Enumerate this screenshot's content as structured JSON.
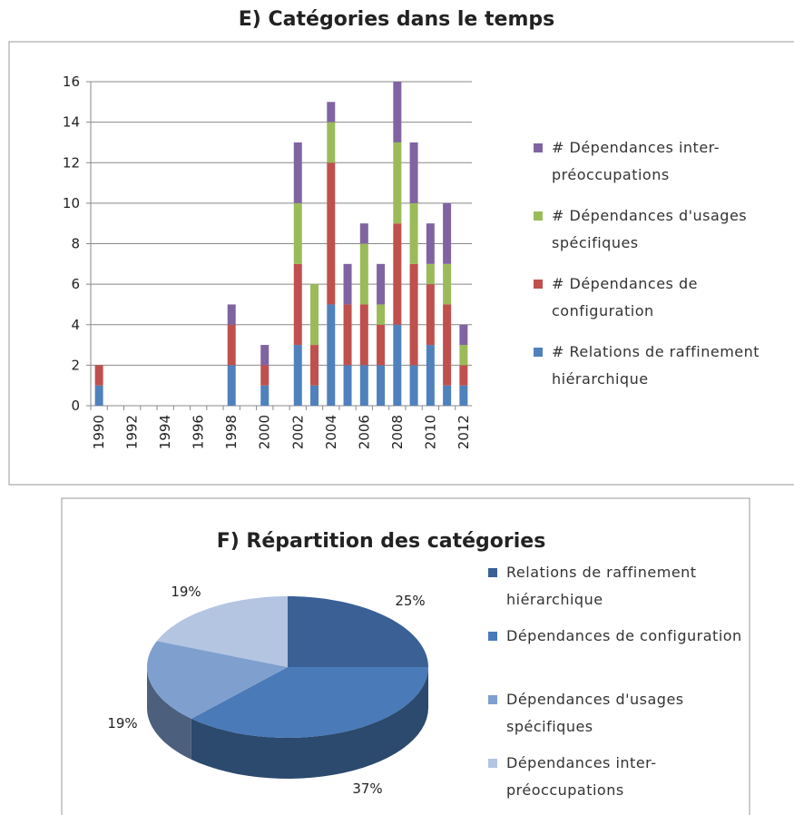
{
  "chart_data": [
    {
      "type": "bar",
      "stacked": true,
      "title": "E) Catégories dans le temps",
      "categories": [
        "1990",
        null,
        "1992",
        null,
        "1994",
        null,
        "1996",
        null,
        "1998",
        null,
        "2000",
        null,
        "2002",
        null,
        "2004",
        null,
        "2006",
        null,
        "2008",
        null,
        "2010",
        null,
        "2012"
      ],
      "series": [
        {
          "name": "# Relations de raffinement hiérarchique",
          "color": "#4f81bd",
          "values": [
            1,
            0,
            0,
            0,
            0,
            0,
            0,
            0,
            2,
            0,
            1,
            0,
            3,
            1,
            5,
            2,
            2,
            2,
            4,
            2,
            3,
            1,
            1
          ]
        },
        {
          "name": "# Dépendances de configuration",
          "color": "#c0504d",
          "values": [
            1,
            0,
            0,
            0,
            0,
            0,
            0,
            0,
            2,
            0,
            1,
            0,
            4,
            2,
            7,
            3,
            3,
            2,
            5,
            5,
            3,
            4,
            1
          ]
        },
        {
          "name": "# Dépendances d'usages spécifiques",
          "color": "#9bbb59",
          "values": [
            0,
            0,
            0,
            0,
            0,
            0,
            0,
            0,
            0,
            0,
            0,
            0,
            3,
            3,
            2,
            0,
            3,
            1,
            4,
            3,
            1,
            2,
            1
          ]
        },
        {
          "name": "# Dépendances inter-préoccupations",
          "color": "#8064a2",
          "values": [
            0,
            0,
            0,
            0,
            0,
            0,
            0,
            0,
            1,
            0,
            1,
            0,
            3,
            0,
            1,
            2,
            1,
            2,
            3,
            3,
            2,
            3,
            1
          ]
        }
      ],
      "ylim": [
        0,
        16
      ],
      "yticks": [
        0,
        2,
        4,
        6,
        8,
        10,
        12,
        14,
        16
      ],
      "grid": true,
      "legend": "right"
    },
    {
      "type": "pie",
      "title": "F) Répartition des catégories",
      "categories": [
        "Relations de raffinement hiérarchique",
        "Dépendances de configuration",
        "Dépendances d'usages spécifiques",
        "Dépendances inter-préoccupations"
      ],
      "values": [
        25,
        37,
        19,
        19
      ],
      "value_labels": [
        "25%",
        "37%",
        "19%",
        "19%"
      ],
      "colors": [
        "#3a6096",
        "#4a7ab8",
        "#7f9fcf",
        "#b4c5e2"
      ],
      "legend": "right"
    }
  ]
}
